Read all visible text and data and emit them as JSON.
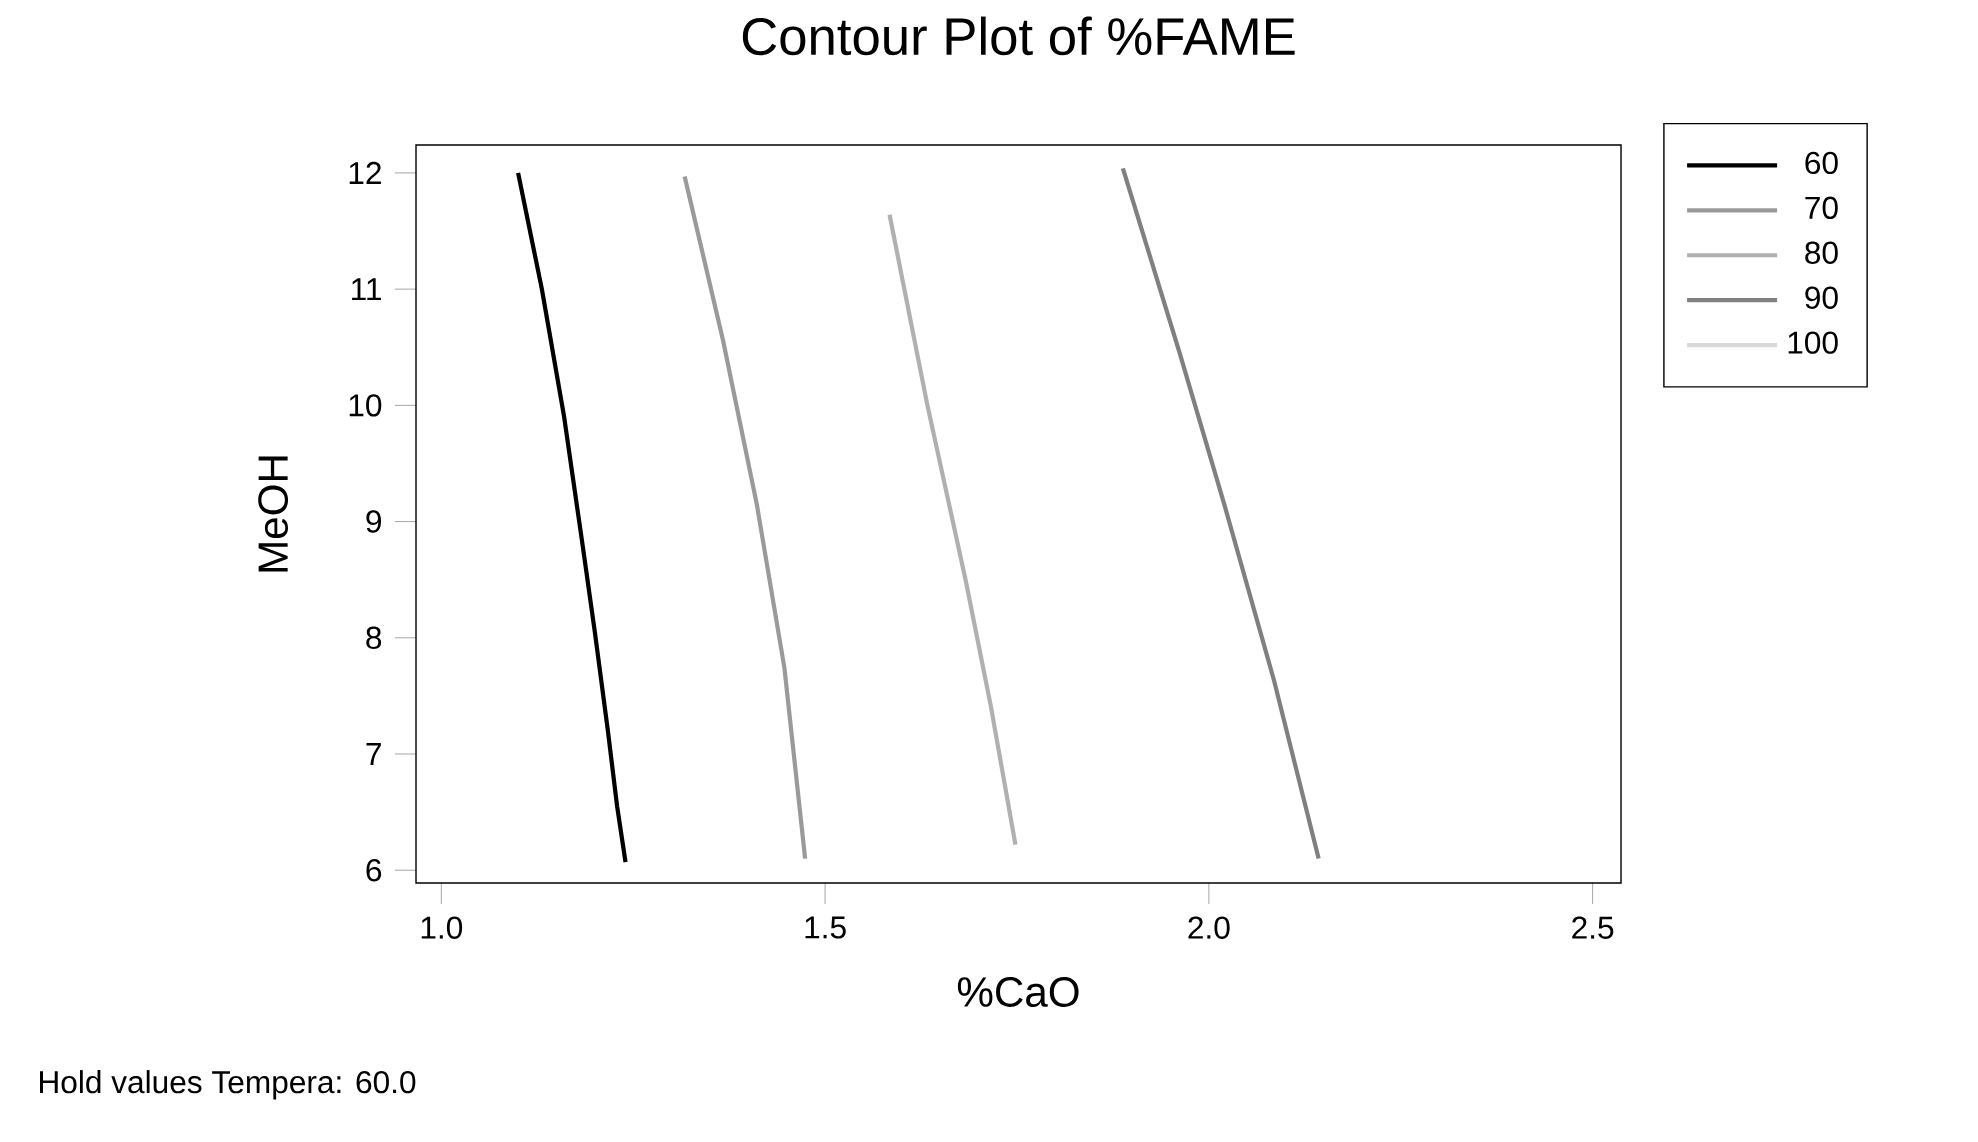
{
  "chart_data": {
    "type": "line",
    "title": "Contour Plot of %FAME",
    "xlabel": "%CaO",
    "ylabel": "MeOH",
    "xlim": [
      0.967,
      2.537
    ],
    "ylim": [
      5.89,
      12.24
    ],
    "xticks": [
      {
        "value": 1.0,
        "label": "1.0"
      },
      {
        "value": 1.5,
        "label": "1.5"
      },
      {
        "value": 2.0,
        "label": "2.0"
      },
      {
        "value": 2.5,
        "label": "2.5"
      }
    ],
    "yticks": [
      6,
      7,
      8,
      9,
      10,
      11,
      12
    ],
    "grid": false,
    "legend": "top right",
    "marker": "none",
    "line_style": "solid",
    "annotations": [
      "Hold values  Tempera: 60.0"
    ],
    "series": [
      {
        "name": "60",
        "color": "#000000",
        "x": [
          1.1,
          1.131,
          1.16,
          1.184,
          1.2,
          1.217,
          1.229,
          1.24
        ],
        "values": [
          12.0,
          11.0,
          9.9,
          8.8,
          8.05,
          7.2,
          6.55,
          6.07
        ]
      },
      {
        "name": "70",
        "color": "#9a9a9a",
        "x": [
          1.317,
          1.367,
          1.411,
          1.447,
          1.474
        ],
        "values": [
          11.97,
          10.56,
          9.15,
          7.74,
          6.1
        ]
      },
      {
        "name": "80",
        "color": "#b0b0b0",
        "x": [
          1.584,
          1.633,
          1.683,
          1.716,
          1.748
        ],
        "values": [
          11.64,
          10.01,
          8.5,
          7.41,
          6.22
        ]
      },
      {
        "name": "90",
        "color": "#808080",
        "x": [
          1.888,
          1.962,
          2.02,
          2.085,
          2.143
        ],
        "values": [
          12.04,
          10.45,
          9.15,
          7.63,
          6.1
        ]
      },
      {
        "name": "100",
        "color": "#d8d8d8"
      }
    ]
  }
}
